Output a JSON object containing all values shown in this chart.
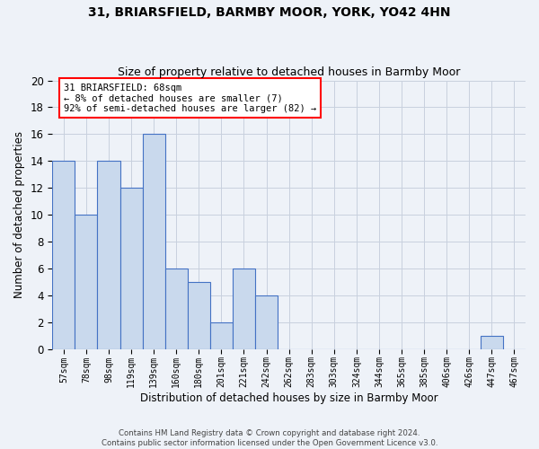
{
  "title": "31, BRIARSFIELD, BARMBY MOOR, YORK, YO42 4HN",
  "subtitle": "Size of property relative to detached houses in Barmby Moor",
  "xlabel": "Distribution of detached houses by size in Barmby Moor",
  "ylabel": "Number of detached properties",
  "footnote1": "Contains HM Land Registry data © Crown copyright and database right 2024.",
  "footnote2": "Contains public sector information licensed under the Open Government Licence v3.0.",
  "bar_labels": [
    "57sqm",
    "78sqm",
    "98sqm",
    "119sqm",
    "139sqm",
    "160sqm",
    "180sqm",
    "201sqm",
    "221sqm",
    "242sqm",
    "262sqm",
    "283sqm",
    "303sqm",
    "324sqm",
    "344sqm",
    "365sqm",
    "385sqm",
    "406sqm",
    "426sqm",
    "447sqm",
    "467sqm"
  ],
  "bar_values": [
    14,
    10,
    14,
    12,
    16,
    6,
    5,
    2,
    6,
    4,
    0,
    0,
    0,
    0,
    0,
    0,
    0,
    0,
    0,
    1,
    0
  ],
  "bar_color": "#c9d9ed",
  "bar_edge_color": "#4472c4",
  "annotation_text": "31 BRIARSFIELD: 68sqm\n← 8% of detached houses are smaller (7)\n92% of semi-detached houses are larger (82) →",
  "ylim": [
    0,
    20
  ],
  "yticks": [
    0,
    2,
    4,
    6,
    8,
    10,
    12,
    14,
    16,
    18,
    20
  ],
  "bg_color": "#eef2f8",
  "grid_color": "#c8d0de"
}
